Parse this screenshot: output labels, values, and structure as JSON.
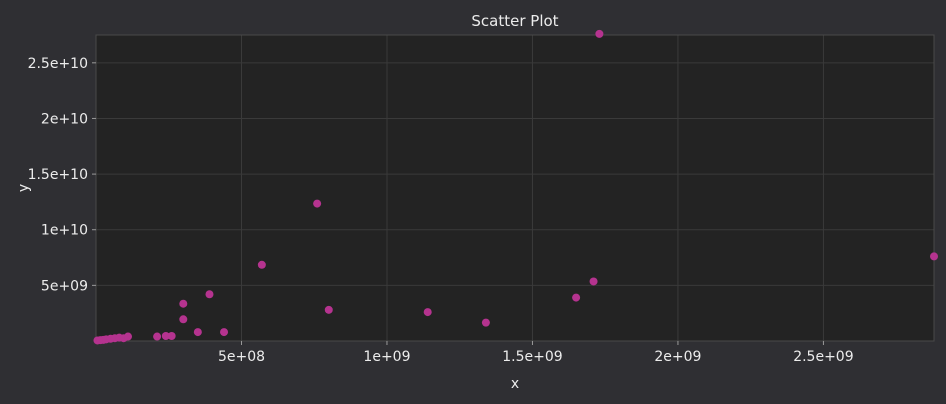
{
  "chart_data": {
    "type": "scatter",
    "title": "Scatter Plot",
    "xlabel": "x",
    "ylabel": "y",
    "xlim": [
      0,
      2880000000
    ],
    "ylim": [
      0,
      27500000000
    ],
    "grid": true,
    "xticks": [
      {
        "value": 500000000,
        "label": "5e+08"
      },
      {
        "value": 1000000000,
        "label": "1e+09"
      },
      {
        "value": 1500000000,
        "label": "1.5e+09"
      },
      {
        "value": 2000000000,
        "label": "2e+09"
      },
      {
        "value": 2500000000,
        "label": "2.5e+09"
      }
    ],
    "yticks": [
      {
        "value": 5000000000,
        "label": "5e+09"
      },
      {
        "value": 10000000000,
        "label": "1e+10"
      },
      {
        "value": 15000000000,
        "label": "1.5e+10"
      },
      {
        "value": 20000000000,
        "label": "2e+10"
      },
      {
        "value": 25000000000,
        "label": "2.5e+10"
      }
    ],
    "series": [
      {
        "color": "#b5338f",
        "points": [
          [
            5000000,
            50000000
          ],
          [
            15000000,
            80000000
          ],
          [
            25000000,
            100000000
          ],
          [
            35000000,
            150000000
          ],
          [
            50000000,
            200000000
          ],
          [
            65000000,
            250000000
          ],
          [
            80000000,
            300000000
          ],
          [
            95000000,
            250000000
          ],
          [
            110000000,
            400000000
          ],
          [
            210000000,
            400000000
          ],
          [
            240000000,
            450000000
          ],
          [
            260000000,
            450000000
          ],
          [
            300000000,
            3350000000
          ],
          [
            300000000,
            1950000000
          ],
          [
            350000000,
            800000000
          ],
          [
            390000000,
            4200000000
          ],
          [
            440000000,
            800000000
          ],
          [
            570000000,
            6850000000
          ],
          [
            760000000,
            12350000000
          ],
          [
            800000000,
            2800000000
          ],
          [
            1140000000,
            2600000000
          ],
          [
            1340000000,
            1650000000
          ],
          [
            1650000000,
            3900000000
          ],
          [
            1710000000,
            5350000000
          ],
          [
            1730000000,
            27600000000
          ],
          [
            2880000000,
            7600000000
          ]
        ]
      }
    ]
  }
}
